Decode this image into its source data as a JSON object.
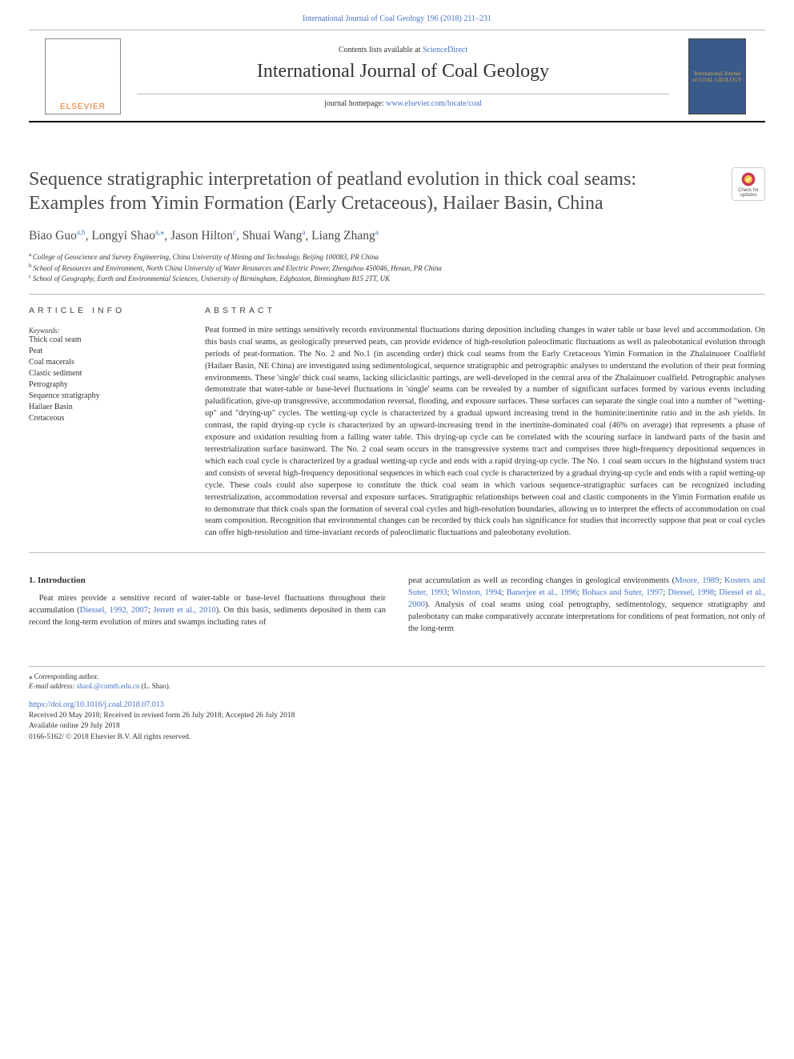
{
  "header": {
    "top_link_text": "International Journal of Coal Geology 196 (2018) 211–231",
    "contents_prefix": "Contents lists available at ",
    "contents_link": "ScienceDirect",
    "journal_name": "International Journal of Coal Geology",
    "homepage_prefix": "journal homepage: ",
    "homepage_link": "www.elsevier.com/locate/coal",
    "publisher_logo_text": "ELSEVIER",
    "cover_text": "International Journal of COAL GEOLOGY",
    "cover_bg": "#3a5a8a",
    "cover_text_color": "#d4a84b"
  },
  "article": {
    "title": "Sequence stratigraphic interpretation of peatland evolution in thick coal seams: Examples from Yimin Formation (Early Cretaceous), Hailaer Basin, China",
    "authors": [
      {
        "name": "Biao Guo",
        "aff": "a,b"
      },
      {
        "name": "Longyi Shao",
        "aff": "a,",
        "corr": true
      },
      {
        "name": "Jason Hilton",
        "aff": "c"
      },
      {
        "name": "Shuai Wang",
        "aff": "a"
      },
      {
        "name": "Liang Zhang",
        "aff": "a"
      }
    ],
    "affiliations": [
      {
        "sup": "a",
        "text": "College of Geoscience and Survey Engineering, China University of Mining and Technology, Beijing 100083, PR China"
      },
      {
        "sup": "b",
        "text": "School of Resources and Environment, North China University of Water Resources and Electric Power, Zhengzhou 450046, Henan, PR China"
      },
      {
        "sup": "c",
        "text": "School of Geography, Earth and Environmental Sciences, University of Birmingham, Edgbaston, Birmingham B15 2TT, UK"
      }
    ],
    "check_badge_label": "Check for updates"
  },
  "info": {
    "heading": "ARTICLE INFO",
    "keywords_label": "Keywords:",
    "keywords": [
      "Thick coal seam",
      "Peat",
      "Coal macerals",
      "Clastic sediment",
      "Petrography",
      "Sequence stratigraphy",
      "Hailaer Basin",
      "Cretaceous"
    ]
  },
  "abstract": {
    "heading": "ABSTRACT",
    "text": "Peat formed in mire settings sensitively records environmental fluctuations during deposition including changes in water table or base level and accommodation. On this basis coal seams, as geologically preserved peats, can provide evidence of high-resolution paleoclimatic fluctuations as well as paleobotanical evolution through periods of peat-formation. The No. 2 and No.1 (in ascending order) thick coal seams from the Early Cretaceous Yimin Formation in the Zhalainuoer Coalfield (Hailaer Basin, NE China) are investigated using sedimentological, sequence stratigraphic and petrographic analyses to understand the evolution of their peat forming environments. These 'single' thick coal seams, lacking siliciclasitic partings, are well-developed in the central area of the Zhalainuoer coalfield. Petrographic analyses demonstrate that water-table or base-level fluctuations in 'single' seams can be revealed by a number of significant surfaces formed by various events including paludification, give-up transgressive, accommodation reversal, flooding, and exposure surfaces. These surfaces can separate the single coal into a number of \"wetting-up\" and \"drying-up\" cycles. The wetting-up cycle is characterized by a gradual upward increasing trend in the huminite:inertinite ratio and in the ash yields. In contrast, the rapid drying-up cycle is characterized by an upward-increasing trend in the inertinite-dominated coal (46% on average) that represents a phase of exposure and oxidation resulting from a falling water table. This drying-up cycle can be correlated with the scouring surface in landward parts of the basin and terrestrialization surface basinward. The No. 2 coal seam occurs in the transgressive systems tract and comprises three high-frequency depositional sequences in which each coal cycle is characterized by a gradual wetting-up cycle and ends with a rapid drying-up cycle. The No. 1 coal seam occurs in the highstand system tract and consists of several high-frequency depositional sequences in which each coal cycle is characterized by a gradual drying-up cycle and ends with a rapid wetting-up cycle. These coals could also superpose to constitute the thick coal seam in which various sequence-stratigraphic surfaces can be recognized including terrestrialization, accommodation reversal and exposure surfaces. Stratigraphic relationships between coal and clastic components in the Yimin Formation enable us to demonstrate that thick coals span the formation of several coal cycles and high-resolution boundaries, allowing us to interpret the effects of accommodation on coal seam composition. Recognition that environmental changes can be recorded by thick coals has significance for studies that incorrectly suppose that peat or coal cycles can offer high-resolution and time-invariant records of paleoclimatic fluctuations and paleobotany evolution."
  },
  "intro": {
    "heading": "1. Introduction",
    "col1_parts": [
      {
        "t": "text",
        "v": "Peat mires provide a sensitive record of water-table or base-level fluctuations throughout their accumulation ("
      },
      {
        "t": "ref",
        "v": "Diessel, 1992, 2007"
      },
      {
        "t": "text",
        "v": "; "
      },
      {
        "t": "ref",
        "v": "Jerrett et al., 2010"
      },
      {
        "t": "text",
        "v": "). On this basis, sediments deposited in them can record the long-term evolution of mires and swamps including rates of"
      }
    ],
    "col2_parts": [
      {
        "t": "text",
        "v": "peat accumulation as well as recording changes in geological environments ("
      },
      {
        "t": "ref",
        "v": "Moore, 1989"
      },
      {
        "t": "text",
        "v": "; "
      },
      {
        "t": "ref",
        "v": "Kosters and Suter, 1993"
      },
      {
        "t": "text",
        "v": "; "
      },
      {
        "t": "ref",
        "v": "Winston, 1994"
      },
      {
        "t": "text",
        "v": "; "
      },
      {
        "t": "ref",
        "v": "Banerjee et al., 1996"
      },
      {
        "t": "text",
        "v": "; "
      },
      {
        "t": "ref",
        "v": "Bohacs and Suter, 1997"
      },
      {
        "t": "text",
        "v": "; "
      },
      {
        "t": "ref",
        "v": "Diessel, 1998"
      },
      {
        "t": "text",
        "v": "; "
      },
      {
        "t": "ref",
        "v": "Diessel et al., 2000"
      },
      {
        "t": "text",
        "v": "). Analysis of coal seams using coal petrography, sedimentology, sequence stratigraphy and paleobotany can make comparatively accurate interpretations for conditions of peat formation, not only of the long-term"
      }
    ]
  },
  "footer": {
    "corr_sym": "⁎",
    "corr_text": " Corresponding author.",
    "email_label": "E-mail address: ",
    "email": "shaoL@cumtb.edu.cn",
    "email_suffix": " (L. Shao).",
    "doi": "https://doi.org/10.1016/j.coal.2018.07.013",
    "dates": "Received 20 May 2018; Received in revised form 26 July 2018; Accepted 26 July 2018",
    "online": "Available online 29 July 2018",
    "copyright": "0166-5162/ © 2018 Elsevier B.V. All rights reserved."
  },
  "colors": {
    "link_color": "#4472c4",
    "text_color": "#333333",
    "elsevier_orange": "#e9711c"
  }
}
